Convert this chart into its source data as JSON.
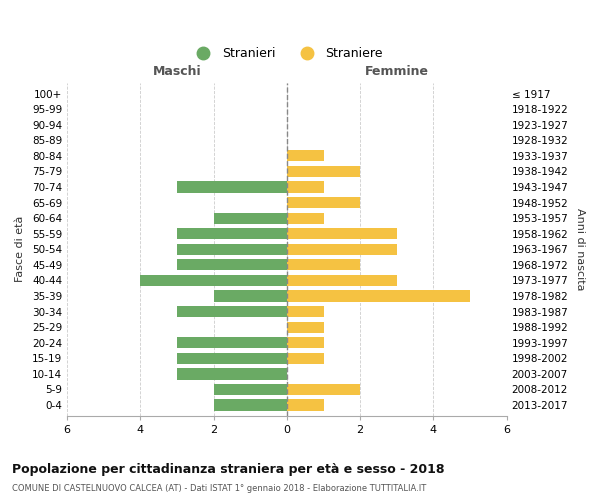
{
  "age_groups": [
    "100+",
    "95-99",
    "90-94",
    "85-89",
    "80-84",
    "75-79",
    "70-74",
    "65-69",
    "60-64",
    "55-59",
    "50-54",
    "45-49",
    "40-44",
    "35-39",
    "30-34",
    "25-29",
    "20-24",
    "15-19",
    "10-14",
    "5-9",
    "0-4"
  ],
  "birth_years": [
    "≤ 1917",
    "1918-1922",
    "1923-1927",
    "1928-1932",
    "1933-1937",
    "1938-1942",
    "1943-1947",
    "1948-1952",
    "1953-1957",
    "1958-1962",
    "1963-1967",
    "1968-1972",
    "1973-1977",
    "1978-1982",
    "1983-1987",
    "1988-1992",
    "1993-1997",
    "1998-2002",
    "2003-2007",
    "2008-2012",
    "2013-2017"
  ],
  "males": [
    0,
    0,
    0,
    0,
    0,
    0,
    3,
    0,
    2,
    3,
    3,
    3,
    4,
    2,
    3,
    0,
    3,
    3,
    3,
    2,
    2
  ],
  "females": [
    0,
    0,
    0,
    0,
    1,
    2,
    1,
    2,
    1,
    3,
    3,
    2,
    3,
    5,
    1,
    1,
    1,
    1,
    0,
    2,
    1
  ],
  "male_color": "#6aaa64",
  "female_color": "#f5c242",
  "title": "Popolazione per cittadinanza straniera per età e sesso - 2018",
  "subtitle": "COMUNE DI CASTELNUOVO CALCEA (AT) - Dati ISTAT 1° gennaio 2018 - Elaborazione TUTTITALIA.IT",
  "legend_male": "Stranieri",
  "legend_female": "Straniere",
  "xlabel_left": "Maschi",
  "xlabel_right": "Femmine",
  "ylabel": "Fasce di età",
  "ylabel_right": "Anni di nascita",
  "xlim": 6,
  "background_color": "#ffffff",
  "grid_color": "#cccccc"
}
